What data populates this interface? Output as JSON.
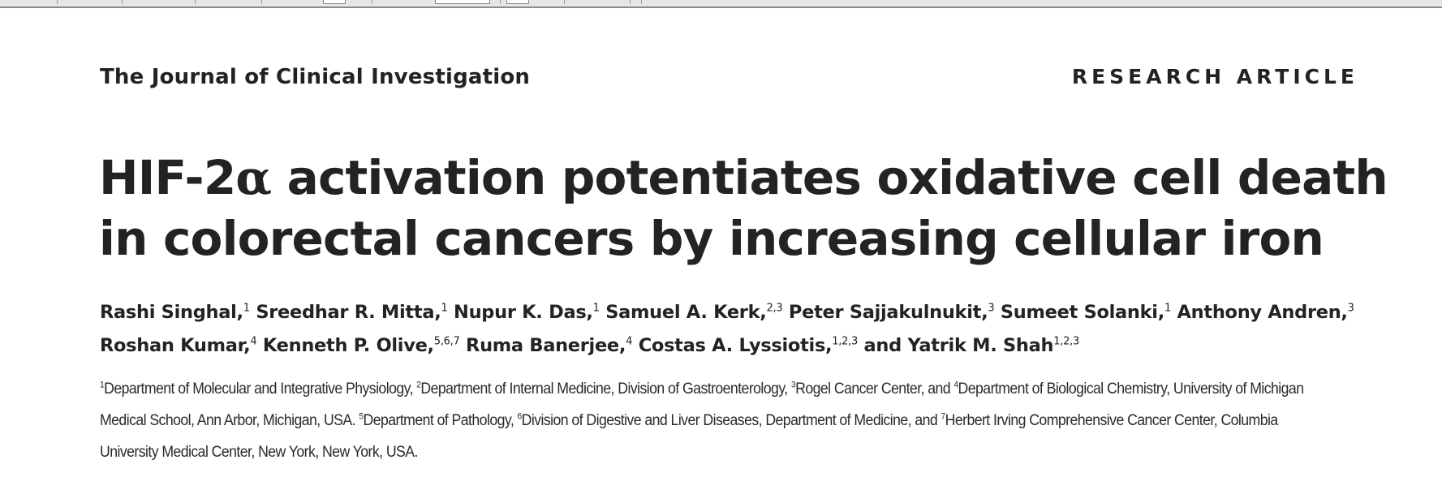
{
  "header": {
    "journal_name": "The Journal of Clinical Investigation",
    "article_type": "RESEARCH ARTICLE"
  },
  "title": {
    "line1_pre": "HIF-2",
    "line1_alpha": "α",
    "line1_post": " activation potentiates oxidative cell death",
    "line2": "in colorectal cancers by increasing cellular iron"
  },
  "authors": [
    {
      "name": "Rashi Singhal,",
      "sup": "1"
    },
    {
      "name": "Sreedhar R. Mitta,",
      "sup": "1"
    },
    {
      "name": "Nupur K. Das,",
      "sup": "1"
    },
    {
      "name": "Samuel A. Kerk,",
      "sup": "2,3"
    },
    {
      "name": "Peter Sajjakulnukit,",
      "sup": "3"
    },
    {
      "name": "Sumeet Solanki,",
      "sup": "1"
    },
    {
      "name": "Anthony Andren,",
      "sup": "3"
    },
    {
      "name": "Roshan Kumar,",
      "sup": "4"
    },
    {
      "name": "Kenneth P. Olive,",
      "sup": "5,6,7"
    },
    {
      "name": "Ruma Banerjee,",
      "sup": "4"
    },
    {
      "name": "Costas A. Lyssiotis,",
      "sup": "1,2,3"
    },
    {
      "name": "and Yatrik M. Shah",
      "sup": "1,2,3"
    }
  ],
  "affiliations": {
    "lines": [
      [
        {
          "sup": "1",
          "text": "Department of Molecular and Integrative Physiology, "
        },
        {
          "sup": "2",
          "text": "Department of Internal Medicine, Division of Gastroenterology, "
        },
        {
          "sup": "3",
          "text": "Rogel Cancer Center, and "
        },
        {
          "sup": "4",
          "text": "Department of Biological Chemistry, University of Michigan"
        }
      ],
      [
        {
          "sup": "",
          "text": "Medical School, Ann Arbor, Michigan, USA. "
        },
        {
          "sup": "5",
          "text": "Department of Pathology, "
        },
        {
          "sup": "6",
          "text": "Division of Digestive and Liver Diseases, Department of Medicine, and "
        },
        {
          "sup": "7",
          "text": "Herbert Irving Comprehensive Cancer Center, Columbia"
        }
      ],
      [
        {
          "sup": "",
          "text": "University Medical Center, New York, New York, USA."
        }
      ]
    ]
  }
}
